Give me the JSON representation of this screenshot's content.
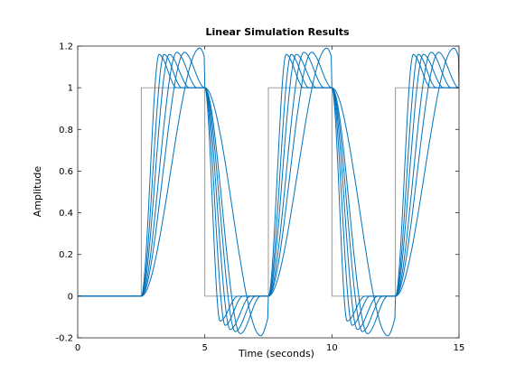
{
  "chart_data": {
    "type": "line",
    "title": "Linear Simulation Results",
    "xlabel": "Time (seconds)",
    "ylabel": "Amplitude",
    "xlim": [
      0,
      15
    ],
    "ylim": [
      -0.2,
      1.2
    ],
    "xticks": [
      0,
      5,
      10,
      15
    ],
    "yticks": [
      -0.2,
      0,
      0.2,
      0.4,
      0.6,
      0.8,
      1,
      1.2
    ],
    "grid": false,
    "legend": "none",
    "colors": {
      "input": "#808080",
      "response": "#0072BD"
    },
    "input_signal": {
      "x": [
        0,
        2.5,
        2.5,
        5,
        5,
        7.5,
        7.5,
        10,
        10,
        12.5,
        12.5,
        15
      ],
      "y": [
        0,
        0,
        1,
        1,
        0,
        0,
        1,
        1,
        0,
        0,
        1,
        1
      ]
    },
    "series": [
      {
        "rise_start": 2.5,
        "peak_time": 3.2,
        "peak": 1.16,
        "settle_time": 3.9,
        "fall_start": 5.0,
        "trough_time": 5.6,
        "trough": -0.12
      },
      {
        "rise_start": 2.5,
        "peak_time": 3.4,
        "peak": 1.16,
        "settle_time": 4.1,
        "fall_start": 5.0,
        "trough_time": 5.8,
        "trough": -0.14
      },
      {
        "rise_start": 2.5,
        "peak_time": 3.6,
        "peak": 1.16,
        "settle_time": 4.4,
        "fall_start": 5.0,
        "trough_time": 6.0,
        "trough": -0.16
      },
      {
        "rise_start": 2.5,
        "peak_time": 3.9,
        "peak": 1.17,
        "settle_time": 4.7,
        "fall_start": 5.0,
        "trough_time": 6.2,
        "trough": -0.17
      },
      {
        "rise_start": 2.5,
        "peak_time": 4.2,
        "peak": 1.17,
        "settle_time": 5.0,
        "fall_start": 5.0,
        "trough_time": 6.4,
        "trough": -0.18
      },
      {
        "rise_start": 2.5,
        "peak_time": 4.8,
        "peak": 1.19,
        "settle_time": 5.4,
        "fall_start": 5.0,
        "trough_time": 7.2,
        "trough": -0.19
      }
    ]
  }
}
